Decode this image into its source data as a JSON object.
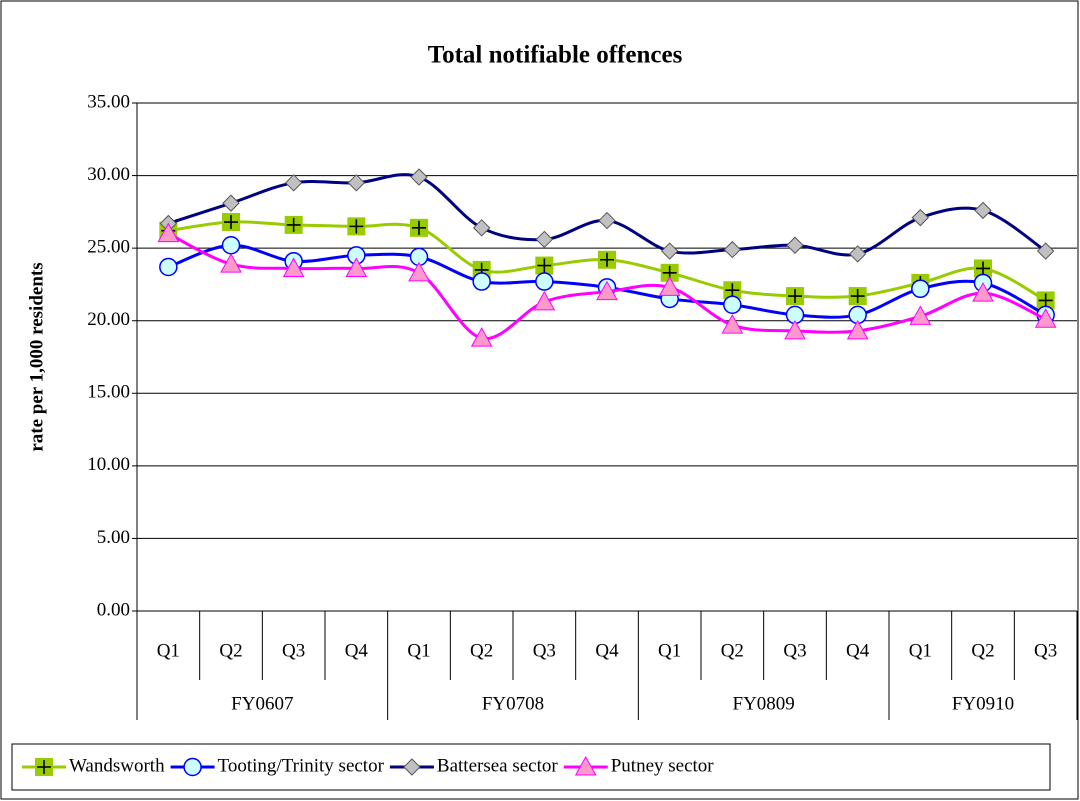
{
  "chart_data": {
    "type": "line",
    "title": "Total notifiable offences",
    "y_label": "rate per 1,000 residents",
    "groups": [
      {
        "label": "FY0607",
        "quarters": [
          "Q1",
          "Q2",
          "Q3",
          "Q4"
        ]
      },
      {
        "label": "FY0708",
        "quarters": [
          "Q1",
          "Q2",
          "Q3",
          "Q4"
        ]
      },
      {
        "label": "FY0809",
        "quarters": [
          "Q1",
          "Q2",
          "Q3",
          "Q4"
        ]
      },
      {
        "label": "FY0910",
        "quarters": [
          "Q1",
          "Q2",
          "Q3"
        ]
      }
    ],
    "ylim": [
      0,
      35
    ],
    "yticks": [
      {
        "value": 0,
        "label": "0.00"
      },
      {
        "value": 5,
        "label": "5.00"
      },
      {
        "value": 10,
        "label": "10.00"
      },
      {
        "value": 15,
        "label": "15.00"
      },
      {
        "value": 20,
        "label": "20.00"
      },
      {
        "value": 25,
        "label": "25.00"
      },
      {
        "value": 30,
        "label": "30.00"
      },
      {
        "value": 35,
        "label": "35.00"
      }
    ],
    "grid": true,
    "legend": "bottom",
    "series": [
      {
        "name": "Wandsworth",
        "color": "#99cc00",
        "marker": "plus-square",
        "marker_fill": "#99cc00",
        "values": [
          26.2,
          26.8,
          26.6,
          26.5,
          26.4,
          23.5,
          23.8,
          24.2,
          23.3,
          22.1,
          21.7,
          21.7,
          22.6,
          23.6,
          21.4
        ]
      },
      {
        "name": "Tooting/Trinity sector",
        "color": "#0000ff",
        "marker": "circle",
        "marker_fill": "#ccffff",
        "values": [
          23.7,
          25.2,
          24.1,
          24.5,
          24.4,
          22.7,
          22.7,
          22.3,
          21.5,
          21.1,
          20.4,
          20.4,
          22.2,
          22.6,
          20.4
        ]
      },
      {
        "name": "Battersea sector",
        "color": "#000080",
        "marker": "diamond",
        "marker_fill": "#c0c0c0",
        "values": [
          26.7,
          28.1,
          29.5,
          29.5,
          29.9,
          26.4,
          25.6,
          26.9,
          24.8,
          24.9,
          25.2,
          24.6,
          27.1,
          27.6,
          24.8
        ]
      },
      {
        "name": "Putney sector",
        "color": "#ff00ff",
        "marker": "triangle",
        "marker_fill": "#ff99cc",
        "values": [
          26.0,
          23.9,
          23.6,
          23.6,
          23.3,
          18.8,
          21.3,
          22.0,
          22.3,
          19.7,
          19.3,
          19.3,
          20.3,
          21.9,
          20.1
        ]
      }
    ]
  }
}
